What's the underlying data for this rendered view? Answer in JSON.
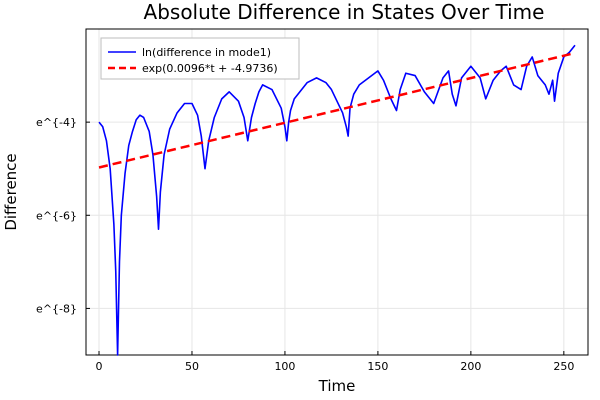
{
  "chart_data": {
    "type": "line",
    "title": "Absolute Difference in States Over Time",
    "xlabel": "Time",
    "ylabel": "Difference",
    "xlim": [
      -7,
      263
    ],
    "ylim": [
      -9.0,
      -2.0
    ],
    "x_ticks": [
      0,
      50,
      100,
      150,
      200,
      250
    ],
    "y_ticks": [
      {
        "value": -4,
        "label": "e^{-4}"
      },
      {
        "value": -6,
        "label": "e^{-6}"
      },
      {
        "value": -8,
        "label": "e^{-8}"
      }
    ],
    "grid": true,
    "legend_position": "top-left",
    "series": [
      {
        "name": "ln(difference in mode1)",
        "color": "#0000ff",
        "style": "solid",
        "x": [
          0,
          2,
          4,
          6,
          8,
          9,
          10,
          11,
          12,
          14,
          16,
          18,
          20,
          22,
          24,
          27,
          29,
          31,
          32,
          33,
          35,
          38,
          42,
          46,
          50,
          53,
          55,
          57,
          59,
          62,
          66,
          70,
          75,
          78,
          80,
          82,
          84,
          86,
          88,
          93,
          98,
          100,
          101,
          102,
          103,
          105,
          108,
          112,
          117,
          122,
          125,
          128,
          131,
          133,
          134,
          135,
          137,
          140,
          145,
          150,
          153,
          157,
          160,
          162,
          165,
          170,
          175,
          180,
          185,
          188,
          190,
          192,
          195,
          200,
          205,
          208,
          212,
          216,
          219,
          223,
          227,
          230,
          233,
          236,
          240,
          242,
          244,
          245,
          247,
          250,
          253,
          256
        ],
        "y": [
          -4.0,
          -4.1,
          -4.4,
          -5.0,
          -6.2,
          -7.2,
          -9.0,
          -7.0,
          -6.0,
          -5.1,
          -4.5,
          -4.2,
          -3.95,
          -3.85,
          -3.9,
          -4.2,
          -4.7,
          -5.6,
          -6.3,
          -5.5,
          -4.7,
          -4.15,
          -3.8,
          -3.6,
          -3.6,
          -3.85,
          -4.3,
          -5.0,
          -4.4,
          -3.9,
          -3.5,
          -3.35,
          -3.55,
          -3.9,
          -4.4,
          -3.9,
          -3.6,
          -3.35,
          -3.2,
          -3.3,
          -3.7,
          -4.1,
          -4.4,
          -4.0,
          -3.75,
          -3.5,
          -3.35,
          -3.15,
          -3.05,
          -3.15,
          -3.3,
          -3.55,
          -3.8,
          -4.1,
          -4.3,
          -3.7,
          -3.4,
          -3.2,
          -3.05,
          -2.9,
          -3.1,
          -3.5,
          -3.75,
          -3.3,
          -2.95,
          -3.0,
          -3.35,
          -3.6,
          -3.05,
          -2.9,
          -3.4,
          -3.65,
          -3.05,
          -2.8,
          -3.05,
          -3.5,
          -3.1,
          -2.9,
          -2.8,
          -3.2,
          -3.3,
          -2.8,
          -2.6,
          -3.0,
          -3.2,
          -3.4,
          -3.1,
          -3.55,
          -2.95,
          -2.6,
          -2.5,
          -2.35
        ]
      },
      {
        "name": "exp(0.0096*t + -4.9736)",
        "color": "#ff0000",
        "style": "dashed",
        "x": [
          0,
          256
        ],
        "y": [
          -4.9736,
          -2.516
        ]
      }
    ]
  }
}
